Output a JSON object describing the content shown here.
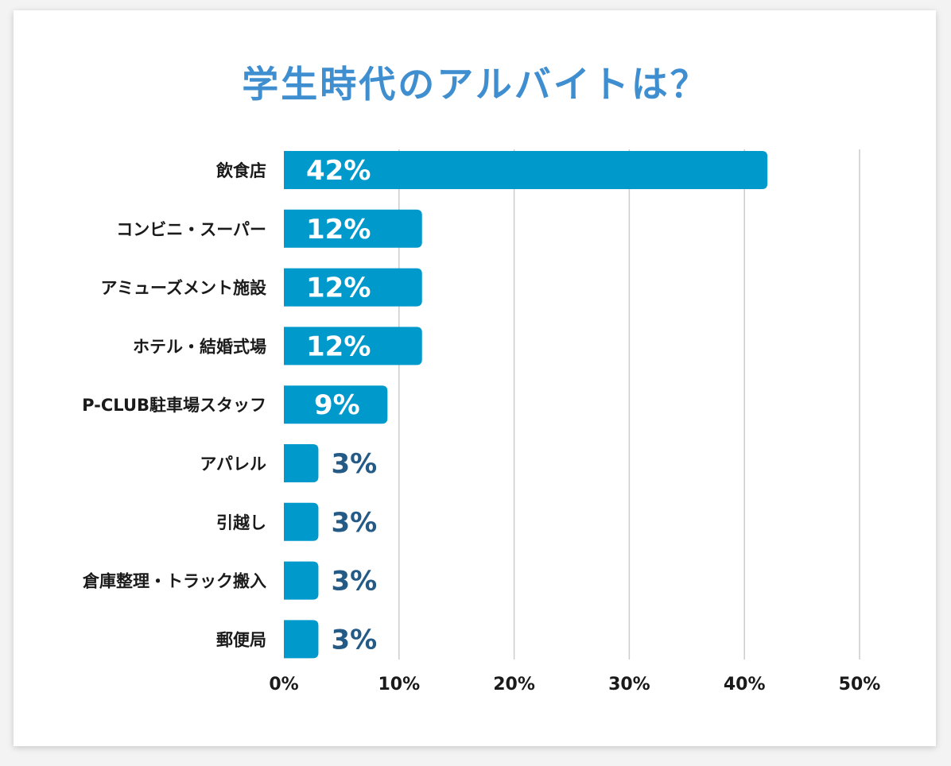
{
  "chart_data": {
    "type": "bar",
    "orientation": "horizontal",
    "title": "学生時代のアルバイトは？",
    "categories": [
      "飲食店",
      "コンビニ・スーパー",
      "アミューズメント施設",
      "ホテル・結婚式場",
      "P-CLUB駐車場スタッフ",
      "アパレル",
      "引越し",
      "倉庫整理・トラック搬入",
      "郵便局"
    ],
    "values": [
      42,
      12,
      12,
      12,
      9,
      3,
      3,
      3,
      3
    ],
    "data_labels": [
      "42%",
      "12%",
      "12%",
      "12%",
      "9%",
      "3%",
      "3%",
      "3%",
      "3%"
    ],
    "xlim": [
      0,
      50
    ],
    "x_ticks": [
      "0%",
      "10%",
      "20%",
      "30%",
      "40%",
      "50%"
    ],
    "grid": "vertical",
    "legend": "none",
    "colors": {
      "bar": "#0099cc",
      "title": "#3f8fd0",
      "label_inside": "#ffffff",
      "label_outside": "#245a86",
      "grid": "#cccccc"
    }
  }
}
